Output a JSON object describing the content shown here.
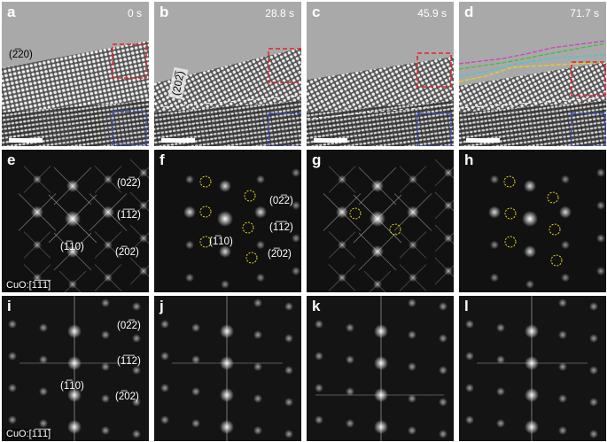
{
  "panels_tem": [
    {
      "letter": "a",
      "time": "0 s",
      "label": "(2̅20)"
    },
    {
      "letter": "b",
      "time": "28.8 s",
      "label": "(202̅)"
    },
    {
      "letter": "c",
      "time": "45.9 s"
    },
    {
      "letter": "d",
      "time": "71.7 s"
    }
  ],
  "panels_fft1": [
    {
      "letter": "e",
      "zone": "CuO:[1̅1̅1̅]",
      "labels": [
        "(02̅2)",
        "(1̅1̅2)",
        "(1̅10)",
        "(2̅02)"
      ]
    },
    {
      "letter": "f",
      "labels": [
        "(02̅2)",
        "(1̅1̅2)",
        "(1̅10)",
        "(2̅02)"
      ]
    },
    {
      "letter": "g"
    },
    {
      "letter": "h"
    }
  ],
  "panels_fft2": [
    {
      "letter": "i",
      "zone": "CuO:[1̅1̅1̅]",
      "labels": [
        "(02̅2)",
        "(1̅1̅2)",
        "(1̅10)",
        "(2̅02)"
      ]
    },
    {
      "letter": "j"
    },
    {
      "letter": "k"
    },
    {
      "letter": "l"
    }
  ],
  "colors": {
    "red_box": "#e8222a",
    "blue_box": "#3a4fc0",
    "circle": "#e6d21e",
    "trace_magenta": "#d040c0",
    "trace_green": "#3fbf3f",
    "trace_cyan": "#3fc9d9",
    "trace_yellow": "#e8d020"
  }
}
